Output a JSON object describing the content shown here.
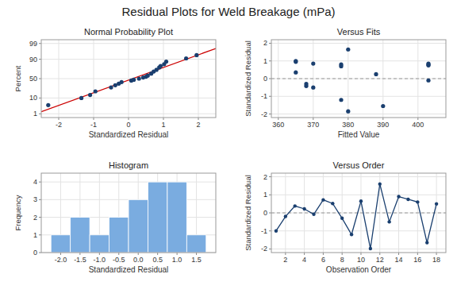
{
  "title": "Residual Plots for Weld Breakage (mPa)",
  "chart_data": [
    {
      "type": "probability",
      "title": "Normal Probability Plot",
      "x_label": "Standardized Residual",
      "y_label": "Percent",
      "series": [
        {
          "type": "line",
          "color": "#cc0000",
          "x": [
            -2.5,
            2.5
          ],
          "values": [
            1.42,
            97.7
          ]
        },
        {
          "type": "scatter",
          "marker": "circle",
          "color": "#1a3f6f",
          "x": [
            -2.3,
            -1.35,
            -1.1,
            -0.95,
            -0.5,
            -0.38,
            -0.28,
            -0.2,
            0.08,
            0.15,
            0.3,
            0.42,
            0.5,
            0.55,
            0.65,
            0.72,
            0.8,
            0.88,
            0.92,
            1.02,
            1.08,
            1.65,
            1.95
          ],
          "values": [
            4,
            10,
            14,
            20,
            28,
            33,
            37,
            41,
            45,
            47,
            50,
            53,
            55,
            58,
            63,
            68,
            72,
            77,
            80,
            83,
            87,
            91,
            94
          ]
        }
      ],
      "xlim": [
        -2.5,
        2.5
      ],
      "ylim": [
        0.5,
        99.5
      ],
      "xticks": [
        -2,
        -1,
        0,
        1,
        2
      ],
      "yticks": [
        1,
        10,
        50,
        90,
        99
      ],
      "grid": true
    },
    {
      "type": "scatter",
      "title": "Versus Fits",
      "x_label": "Fitted Value",
      "y_label": "Standardized Residual",
      "series": [
        {
          "type": "line",
          "line_style": "dashed",
          "color": "#999999",
          "x": [
            358,
            408
          ],
          "values": [
            0,
            0
          ]
        },
        {
          "type": "scatter",
          "marker": "circle",
          "color": "#1a3f6f",
          "x": [
            365,
            365,
            365,
            368,
            368,
            370,
            370,
            378,
            378,
            378,
            380,
            380,
            388,
            390,
            403,
            403,
            403,
            403
          ],
          "values": [
            0.35,
            0.95,
            1.0,
            -0.42,
            -0.3,
            -0.5,
            0.85,
            0.8,
            0.7,
            -1.2,
            1.65,
            -1.85,
            0.25,
            -1.55,
            0.8,
            0.85,
            0.75,
            -0.1
          ]
        }
      ],
      "xlim": [
        358,
        408
      ],
      "ylim": [
        -2.2,
        2.2
      ],
      "xticks": [
        360,
        370,
        380,
        390,
        400
      ],
      "yticks": [
        -2,
        -1,
        0,
        1,
        2
      ],
      "grid": true
    },
    {
      "type": "histogram",
      "title": "Histogram",
      "x_label": "Standardized Residual",
      "y_label": "Frequency",
      "bins": [
        -2.25,
        -1.75,
        -1.25,
        -0.75,
        -0.25,
        0.25,
        0.75,
        1.25,
        1.75
      ],
      "values": [
        1,
        2,
        1,
        2,
        3,
        4,
        4,
        1
      ],
      "color": "#7aace0",
      "xlim": [
        -2.5,
        2.0
      ],
      "ylim": [
        0,
        4.5
      ],
      "xticks": [
        {
          "value": -2.0,
          "label": "-2.0"
        },
        {
          "value": -1.5,
          "label": "-1.5"
        },
        {
          "value": -1.0,
          "label": "-1.0"
        },
        {
          "value": -0.5,
          "label": "-0.5"
        },
        {
          "value": 0.0,
          "label": "0.0"
        },
        {
          "value": 0.5,
          "label": "0.5"
        },
        {
          "value": 1.0,
          "label": "1.0"
        },
        {
          "value": 1.5,
          "label": "1.5"
        }
      ],
      "yticks": [
        0,
        1,
        2,
        3,
        4
      ],
      "grid": true
    },
    {
      "type": "line",
      "title": "Versus Order",
      "x_label": "Observation Order",
      "y_label": "Standardized Residual",
      "series": [
        {
          "type": "line",
          "line_style": "dashed",
          "color": "#999999",
          "x": [
            0.5,
            19
          ],
          "values": [
            0,
            0
          ]
        },
        {
          "type": "line",
          "marker": "circle",
          "color": "#1a3f6f",
          "x": [
            1,
            2,
            3,
            4,
            5,
            6,
            7,
            8,
            9,
            10,
            11,
            12,
            13,
            14,
            15,
            16,
            17,
            18
          ],
          "values": [
            -1.0,
            -0.2,
            0.38,
            0.22,
            -0.08,
            0.72,
            0.52,
            -0.3,
            -1.2,
            0.65,
            -1.98,
            1.6,
            -0.5,
            0.9,
            0.75,
            0.6,
            -1.65,
            0.5
          ]
        }
      ],
      "xlim": [
        0.5,
        19
      ],
      "ylim": [
        -2.2,
        2.2
      ],
      "xticks": [
        2,
        4,
        6,
        8,
        10,
        12,
        14,
        16,
        18
      ],
      "yticks": [
        -2,
        -1,
        0,
        1,
        2
      ],
      "grid": true
    }
  ]
}
